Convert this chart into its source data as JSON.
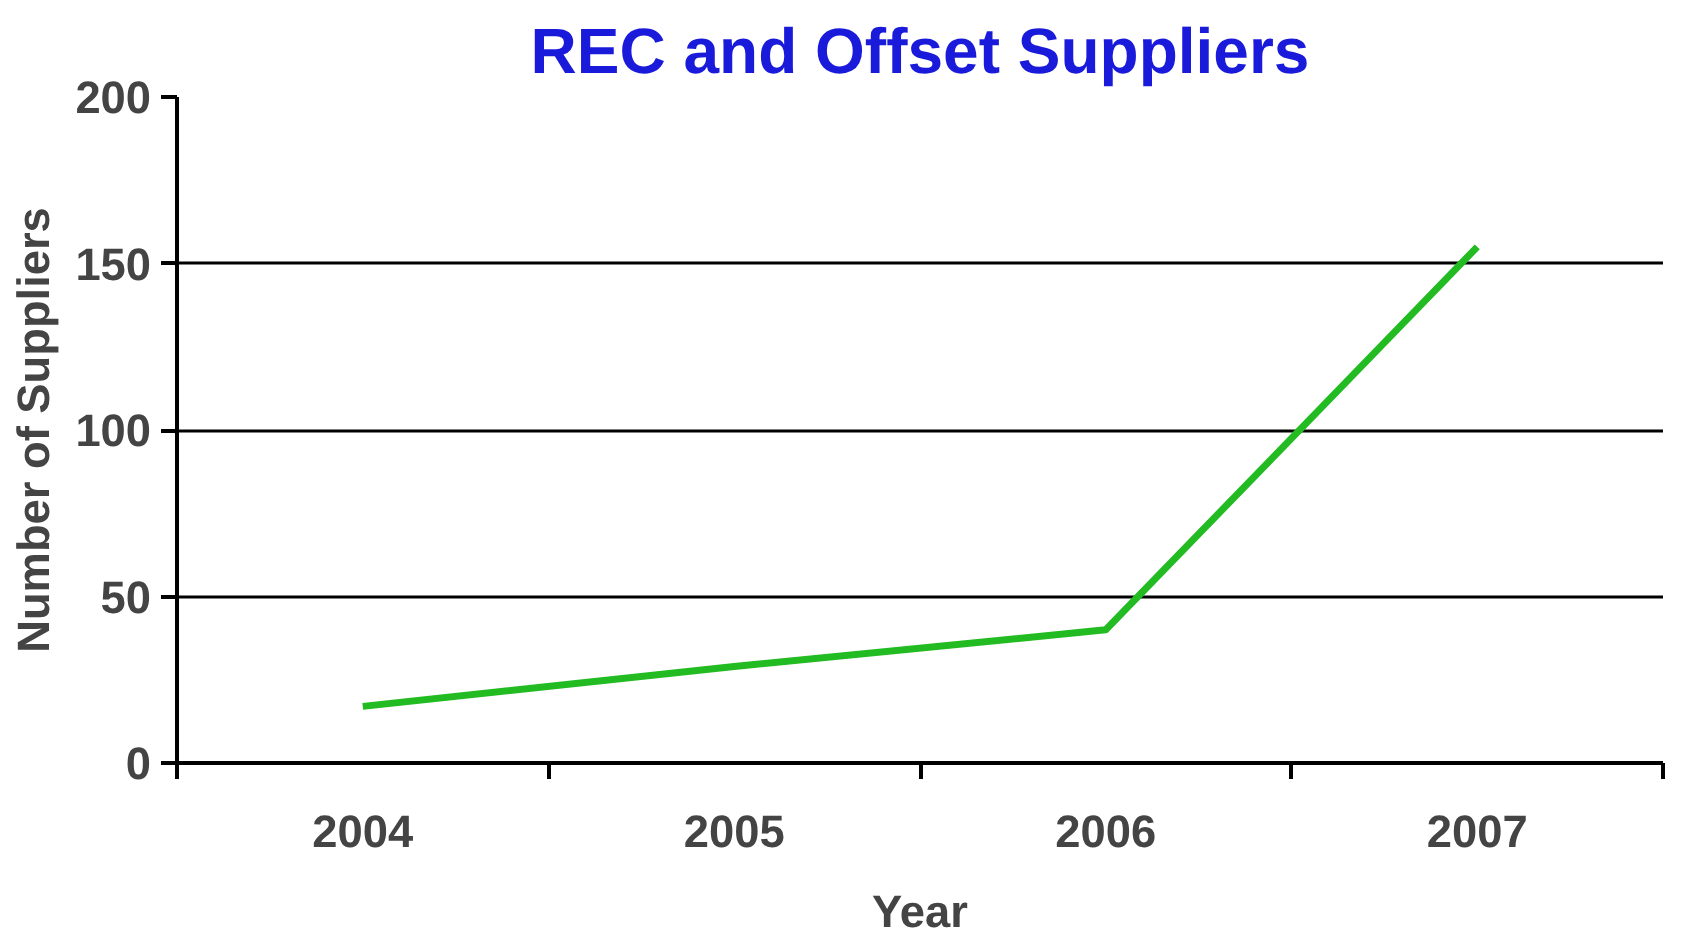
{
  "chart_data": {
    "type": "line",
    "title": "REC and Offset Suppliers",
    "xlabel": "Year",
    "ylabel": "Number of Suppliers",
    "categories": [
      "2004",
      "2005",
      "2006",
      "2007"
    ],
    "series": [
      {
        "color": "#22bb22",
        "values": [
          17,
          29,
          40,
          155
        ]
      }
    ],
    "ylim": [
      0,
      200
    ],
    "yticks": [
      0,
      50,
      100,
      150,
      200
    ],
    "grid": "y",
    "marker": "none",
    "line_style": "solid"
  }
}
